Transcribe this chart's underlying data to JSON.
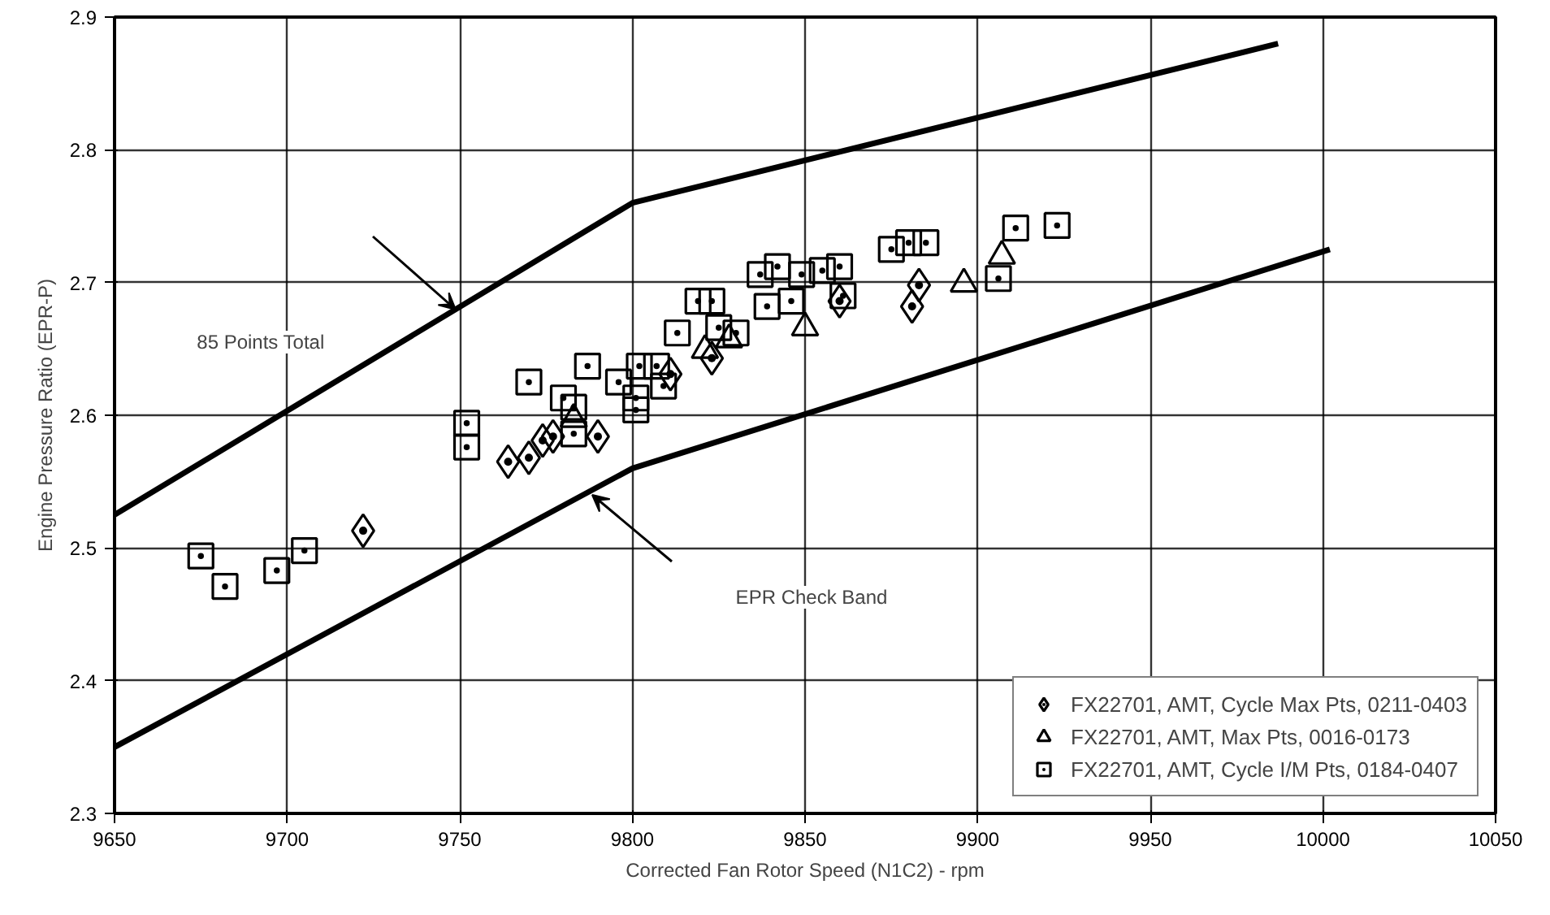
{
  "chart_data": {
    "type": "scatter",
    "xlabel": "Corrected Fan Rotor Speed (N1C2) - rpm",
    "ylabel": "Engine Pressure Ratio (EPR-P)",
    "xlim": [
      9650,
      10050
    ],
    "xticks": [
      9650,
      9700,
      9750,
      9800,
      9850,
      9900,
      9950,
      10000,
      10050
    ],
    "ylim": [
      2.3,
      2.9
    ],
    "yticks": [
      2.3,
      2.4,
      2.5,
      2.6,
      2.7,
      2.8,
      2.9
    ],
    "grid": true,
    "legend": "bottom right",
    "series": [
      {
        "name": "FX22701, AMT, Cycle Max Pts, 0211-0403",
        "color": "#000000",
        "marker": "diamond",
        "x": [
          9722,
          9764,
          9770,
          9774,
          9777,
          9790,
          9811,
          9823,
          9860,
          9883,
          9881
        ],
        "values": [
          2.513,
          2.565,
          2.568,
          2.581,
          2.584,
          2.584,
          2.631,
          2.643,
          2.686,
          2.698,
          2.682
        ]
      },
      {
        "name": "FX22701, AMT, Max Pts, 0016-0173",
        "color": "#000000",
        "marker": "triangle",
        "x": [
          9783,
          9821,
          9828,
          9850,
          9896,
          9907
        ],
        "values": [
          2.597,
          2.649,
          2.657,
          2.666,
          2.699,
          2.72
        ]
      },
      {
        "name": "FX22701, AMT, Cycle I/M Pts, 0184-0407",
        "color": "#000000",
        "marker": "square",
        "x": [
          9675,
          9682,
          9697,
          9705,
          9752,
          9752,
          9770,
          9780,
          9783,
          9783,
          9787,
          9796,
          9801,
          9801,
          9802,
          9807,
          9809,
          9813,
          9819,
          9823,
          9825,
          9830,
          9837,
          9839,
          9842,
          9846,
          9849,
          9855,
          9860,
          9861,
          9875,
          9880,
          9885,
          9906,
          9911,
          9923
        ],
        "values": [
          2.494,
          2.471,
          2.483,
          2.498,
          2.594,
          2.576,
          2.625,
          2.613,
          2.606,
          2.586,
          2.637,
          2.625,
          2.604,
          2.613,
          2.637,
          2.637,
          2.622,
          2.662,
          2.686,
          2.686,
          2.666,
          2.662,
          2.706,
          2.682,
          2.712,
          2.686,
          2.706,
          2.709,
          2.712,
          2.69,
          2.725,
          2.73,
          2.73,
          2.703,
          2.741,
          2.743
        ]
      },
      {
        "type": "line",
        "color": "#000000",
        "x": [
          9650,
          9800,
          9987
        ],
        "values": [
          2.525,
          2.76,
          2.88
        ]
      },
      {
        "type": "line",
        "color": "#000000",
        "x": [
          9650,
          9800,
          10002
        ],
        "values": [
          2.35,
          2.56,
          2.725
        ]
      }
    ],
    "annotations": [
      "85 Points Total",
      "EPR Check Band"
    ]
  }
}
